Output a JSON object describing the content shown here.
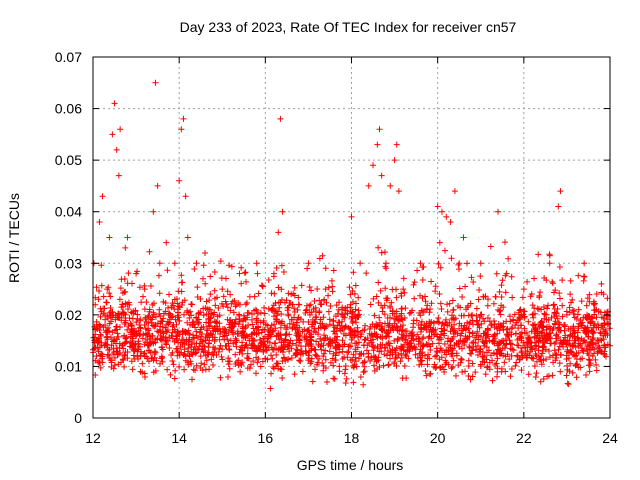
{
  "chart_data": {
    "type": "scatter",
    "title": "Day 233 of 2023, Rate Of TEC Index for receiver cn57",
    "xlabel": "GPS time / hours",
    "ylabel": "ROTI / TECUs",
    "xlim": [
      12,
      24
    ],
    "ylim": [
      0,
      0.07
    ],
    "x_ticks": [
      12,
      14,
      16,
      18,
      20,
      22,
      24
    ],
    "x_tick_labels": [
      "12",
      "14",
      "16",
      "18",
      "20",
      "22",
      "24"
    ],
    "y_ticks": [
      0,
      0.01,
      0.02,
      0.03,
      0.04,
      0.05,
      0.06,
      0.07
    ],
    "y_tick_labels": [
      "0",
      "0.01",
      "0.02",
      "0.03",
      "0.04",
      "0.05",
      "0.06",
      "0.07"
    ],
    "grid": true,
    "marker": "+",
    "marker_color": "#ff0000",
    "series": [
      {
        "name": "ROTI",
        "x": [
          12.02,
          12.08,
          12.15,
          12.22,
          12.28,
          12.33,
          12.38,
          12.45,
          12.5,
          12.55,
          12.6,
          12.63,
          12.68,
          12.75,
          12.8,
          12.9,
          13.0,
          13.1,
          13.2,
          13.3,
          13.4,
          13.45,
          13.5,
          13.55,
          13.6,
          13.7,
          13.8,
          13.9,
          14.0,
          14.05,
          14.1,
          14.15,
          14.2,
          14.3,
          14.4,
          14.5,
          14.6,
          14.8,
          15.0,
          15.2,
          15.4,
          15.6,
          15.8,
          16.0,
          16.2,
          16.3,
          16.35,
          16.4,
          16.6,
          16.8,
          17.0,
          17.2,
          17.4,
          17.6,
          17.8,
          18.0,
          18.2,
          18.4,
          18.5,
          18.6,
          18.65,
          18.7,
          18.8,
          18.9,
          19.0,
          19.05,
          19.1,
          19.2,
          19.4,
          19.6,
          19.8,
          20.0,
          20.05,
          20.1,
          20.2,
          20.3,
          20.4,
          20.5,
          20.6,
          20.8,
          21.0,
          21.2,
          21.4,
          21.6,
          21.8,
          22.0,
          22.2,
          22.4,
          22.6,
          22.7,
          22.8,
          22.85,
          23.0,
          23.2,
          23.4,
          23.6,
          23.8,
          24.0
        ],
        "y": [
          0.03,
          0.012,
          0.038,
          0.043,
          0.018,
          0.025,
          0.035,
          0.055,
          0.061,
          0.052,
          0.047,
          0.056,
          0.022,
          0.033,
          0.035,
          0.018,
          0.028,
          0.012,
          0.025,
          0.011,
          0.04,
          0.065,
          0.045,
          0.03,
          0.015,
          0.034,
          0.02,
          0.03,
          0.046,
          0.056,
          0.058,
          0.043,
          0.035,
          0.018,
          0.03,
          0.012,
          0.032,
          0.02,
          0.025,
          0.015,
          0.028,
          0.018,
          0.03,
          0.014,
          0.028,
          0.036,
          0.058,
          0.04,
          0.024,
          0.015,
          0.03,
          0.012,
          0.025,
          0.015,
          0.02,
          0.039,
          0.03,
          0.045,
          0.049,
          0.053,
          0.056,
          0.047,
          0.03,
          0.045,
          0.05,
          0.053,
          0.044,
          0.025,
          0.015,
          0.03,
          0.018,
          0.041,
          0.034,
          0.04,
          0.039,
          0.038,
          0.044,
          0.03,
          0.035,
          0.02,
          0.03,
          0.015,
          0.04,
          0.028,
          0.018,
          0.025,
          0.02,
          0.012,
          0.03,
          0.022,
          0.041,
          0.044,
          0.02,
          0.015,
          0.03,
          0.012,
          0.026,
          0.014
        ]
      }
    ]
  }
}
